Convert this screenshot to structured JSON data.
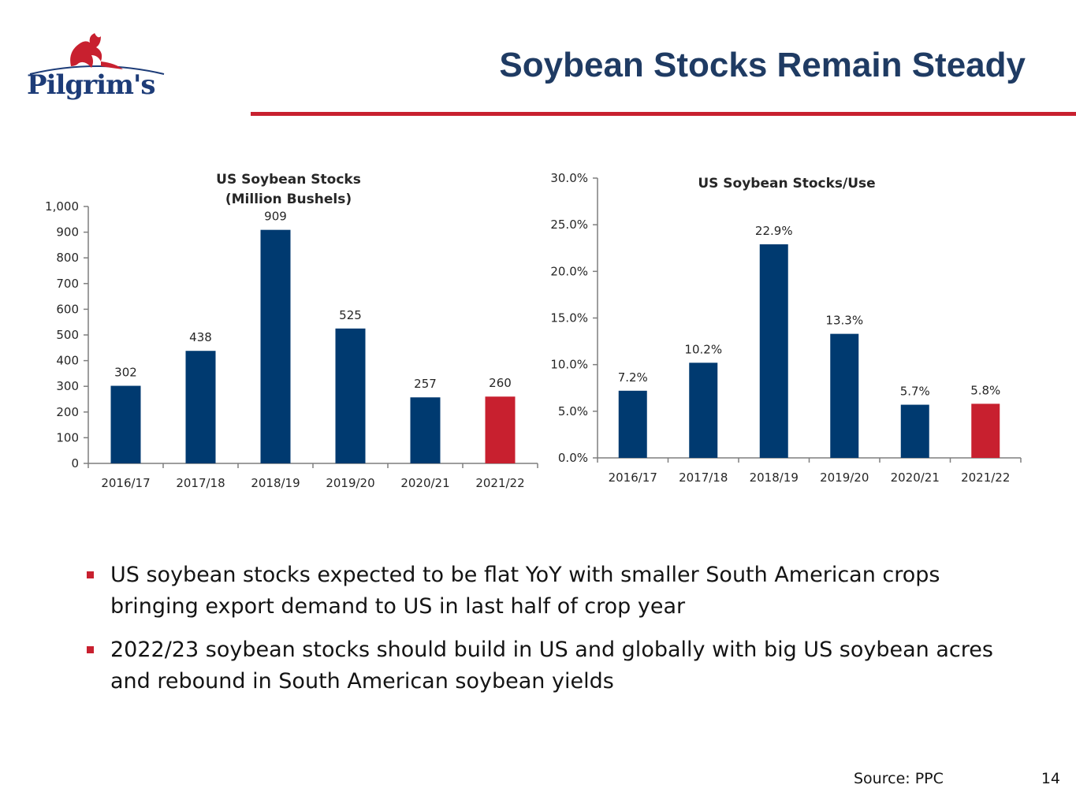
{
  "logo": {
    "text": "Pilgrim's"
  },
  "slide": {
    "title": "Soybean Stocks Remain Steady",
    "bullets": [
      "US soybean stocks expected to be flat YoY with smaller South American crops bringing export demand to US in last half of crop year",
      "2022/23 soybean stocks should build in US and globally with big US soybean acres and rebound in South American soybean yields"
    ],
    "source": "Source: PPC",
    "page_number": "14"
  },
  "colors": {
    "navy": "#003a70",
    "red": "#c8202f",
    "title": "#1f3b63"
  },
  "chart_data": [
    {
      "type": "bar",
      "title": "US Soybean Stocks",
      "subtitle": "(Million Bushels)",
      "categories": [
        "2016/17",
        "2017/18",
        "2018/19",
        "2019/20",
        "2020/21",
        "2021/22"
      ],
      "values": [
        302,
        438,
        909,
        525,
        257,
        260
      ],
      "data_labels": [
        "302",
        "438",
        "909",
        "525",
        "257",
        "260"
      ],
      "bar_colors": [
        "#003a70",
        "#003a70",
        "#003a70",
        "#003a70",
        "#003a70",
        "#c8202f"
      ],
      "ylim": [
        0,
        1000
      ],
      "yticks": [
        0,
        100,
        200,
        300,
        400,
        500,
        600,
        700,
        800,
        900,
        1000
      ],
      "ytick_labels": [
        "0",
        "100",
        "200",
        "300",
        "400",
        "500",
        "600",
        "700",
        "800",
        "900",
        "1,000"
      ],
      "grid": false,
      "legend": "none"
    },
    {
      "type": "bar",
      "title": "US Soybean Stocks/Use",
      "categories": [
        "2016/17",
        "2017/18",
        "2018/19",
        "2019/20",
        "2020/21",
        "2021/22"
      ],
      "values": [
        7.2,
        10.2,
        22.9,
        13.3,
        5.7,
        5.8
      ],
      "data_labels": [
        "7.2%",
        "10.2%",
        "22.9%",
        "13.3%",
        "5.7%",
        "5.8%"
      ],
      "bar_colors": [
        "#003a70",
        "#003a70",
        "#003a70",
        "#003a70",
        "#003a70",
        "#c8202f"
      ],
      "ylim": [
        0,
        30
      ],
      "yticks": [
        0,
        5,
        10,
        15,
        20,
        25,
        30
      ],
      "ytick_labels": [
        "0.0%",
        "5.0%",
        "10.0%",
        "15.0%",
        "20.0%",
        "25.0%",
        "30.0%"
      ],
      "grid": false,
      "legend": "none"
    }
  ]
}
